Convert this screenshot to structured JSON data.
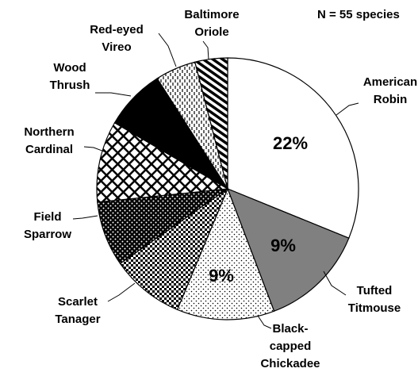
{
  "chart_data": {
    "type": "pie",
    "subtitle": "N = 55  species",
    "categories": [
      "American Robin",
      "Tufted Titmouse",
      "Black-capped Chickadee",
      "Scarlet Tanager",
      "Field Sparrow",
      "Northern Cardinal",
      "Wood Thrush",
      "Red-eyed Vireo",
      "Baltimore Oriole"
    ],
    "values": [
      31,
      13,
      12,
      9,
      8,
      10,
      7.5,
      5,
      4
    ],
    "colors": [
      "#ffffff",
      "#808080",
      "url(#p-dots)",
      "url(#p-checker)",
      "url(#p-sparrow)",
      "url(#p-lattice)",
      "#000000",
      "url(#p-dash)",
      "url(#p-stripe)"
    ],
    "annotations": [
      "22%",
      "9%",
      "9%"
    ]
  }
}
